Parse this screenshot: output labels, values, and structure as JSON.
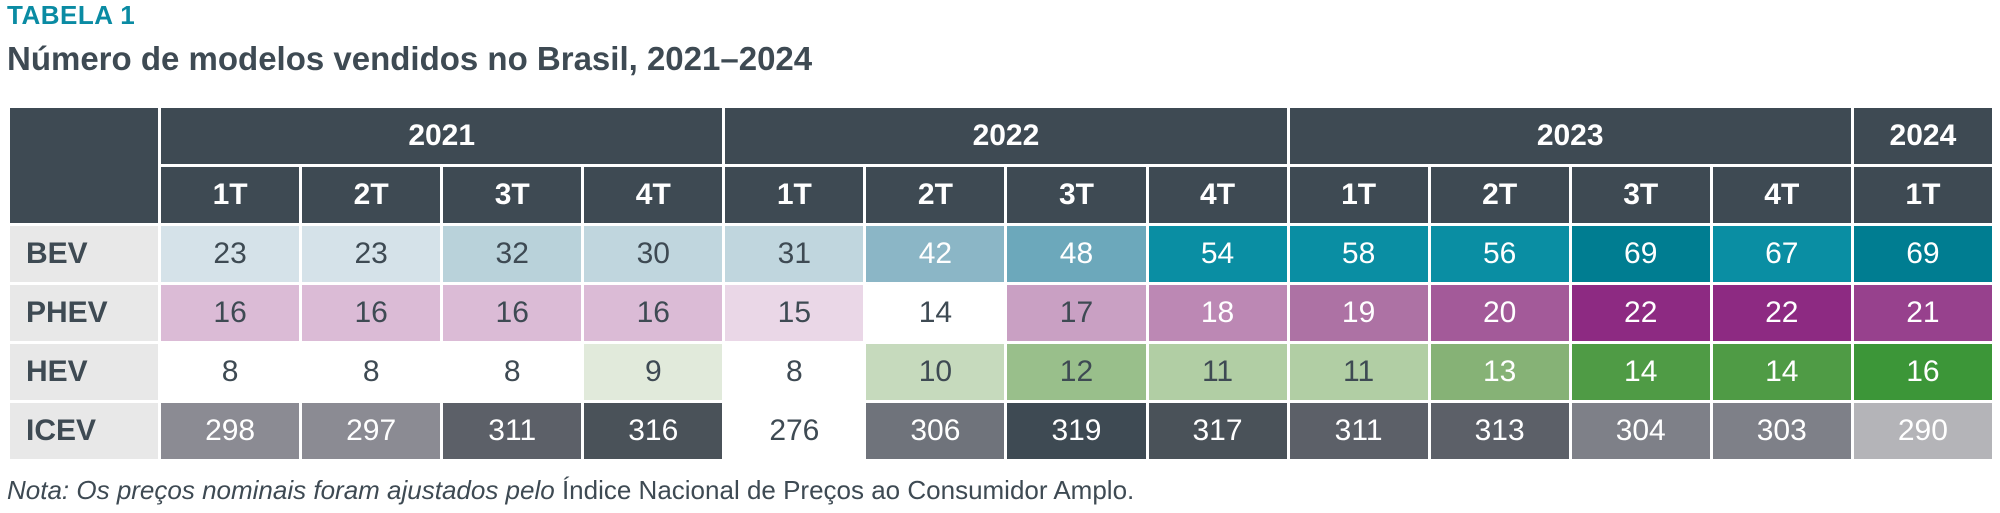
{
  "label": "TABELA 1",
  "title": "Número de modelos vendidos no Brasil, 2021–2024",
  "years": [
    {
      "label": "2021",
      "span": 4
    },
    {
      "label": "2022",
      "span": 4
    },
    {
      "label": "2023",
      "span": 4
    },
    {
      "label": "2024",
      "span": 1
    }
  ],
  "quarters": [
    "1T",
    "2T",
    "3T",
    "4T",
    "1T",
    "2T",
    "3T",
    "4T",
    "1T",
    "2T",
    "3T",
    "4T",
    "1T"
  ],
  "rows": [
    {
      "name": "BEV",
      "values": [
        23,
        23,
        32,
        30,
        31,
        42,
        48,
        54,
        58,
        56,
        69,
        67,
        69
      ],
      "bg": [
        "#d5e2e9",
        "#d5e2e9",
        "#b9d2da",
        "#c0d6de",
        "#c0d6de",
        "#8bb6c6",
        "#6ca8bb",
        "#0a8ea3",
        "#0a8ea3",
        "#0a8ea3",
        "#007d91",
        "#0a8ea3",
        "#007d91"
      ],
      "fg": [
        "#3e4a53",
        "#3e4a53",
        "#3e4a53",
        "#3e4a53",
        "#3e4a53",
        "#ffffff",
        "#ffffff",
        "#ffffff",
        "#ffffff",
        "#ffffff",
        "#ffffff",
        "#ffffff",
        "#ffffff"
      ]
    },
    {
      "name": "PHEV",
      "values": [
        16,
        16,
        16,
        16,
        15,
        14,
        17,
        18,
        19,
        20,
        22,
        22,
        21
      ],
      "bg": [
        "#dbbbd6",
        "#dbbbd6",
        "#dbbbd6",
        "#dbbbd6",
        "#ead7e7",
        "#ffffff",
        "#c9a0c3",
        "#bc88b4",
        "#ad72a4",
        "#a35a99",
        "#8d2a82",
        "#8d2a82",
        "#97418d"
      ],
      "fg": [
        "#3e4a53",
        "#3e4a53",
        "#3e4a53",
        "#3e4a53",
        "#3e4a53",
        "#3e4a53",
        "#3e4a53",
        "#ffffff",
        "#ffffff",
        "#ffffff",
        "#ffffff",
        "#ffffff",
        "#ffffff"
      ]
    },
    {
      "name": "HEV",
      "values": [
        8,
        8,
        8,
        9,
        8,
        10,
        12,
        11,
        11,
        13,
        14,
        14,
        16
      ],
      "bg": [
        "#ffffff",
        "#ffffff",
        "#ffffff",
        "#e1eadb",
        "#ffffff",
        "#c6dabd",
        "#99bf8b",
        "#b1cea4",
        "#b1cea4",
        "#86b276",
        "#4f9b45",
        "#4f9b45",
        "#3c9638"
      ],
      "fg": [
        "#3e4a53",
        "#3e4a53",
        "#3e4a53",
        "#3e4a53",
        "#3e4a53",
        "#3e4a53",
        "#3e4a53",
        "#3e4a53",
        "#3e4a53",
        "#ffffff",
        "#ffffff",
        "#ffffff",
        "#ffffff"
      ]
    },
    {
      "name": "ICEV",
      "values": [
        298,
        297,
        311,
        316,
        276,
        306,
        319,
        317,
        311,
        313,
        304,
        303,
        290
      ],
      "bg": [
        "#8b8b93",
        "#8b8b93",
        "#5c6068",
        "#4a5259",
        "#ffffff",
        "#6f737b",
        "#3e4a53",
        "#4a5259",
        "#5c6068",
        "#5c6068",
        "#7e8088",
        "#7e8088",
        "#b4b4b8"
      ],
      "fg": [
        "#ffffff",
        "#ffffff",
        "#ffffff",
        "#ffffff",
        "#3e4a53",
        "#ffffff",
        "#ffffff",
        "#ffffff",
        "#ffffff",
        "#ffffff",
        "#ffffff",
        "#ffffff",
        "#ffffff"
      ]
    }
  ],
  "note": {
    "italic": "Nota: Os preços nominais foram ajustados pelo",
    "normal": " Índice Nacional de Preços ao Consumidor Amplo."
  }
}
